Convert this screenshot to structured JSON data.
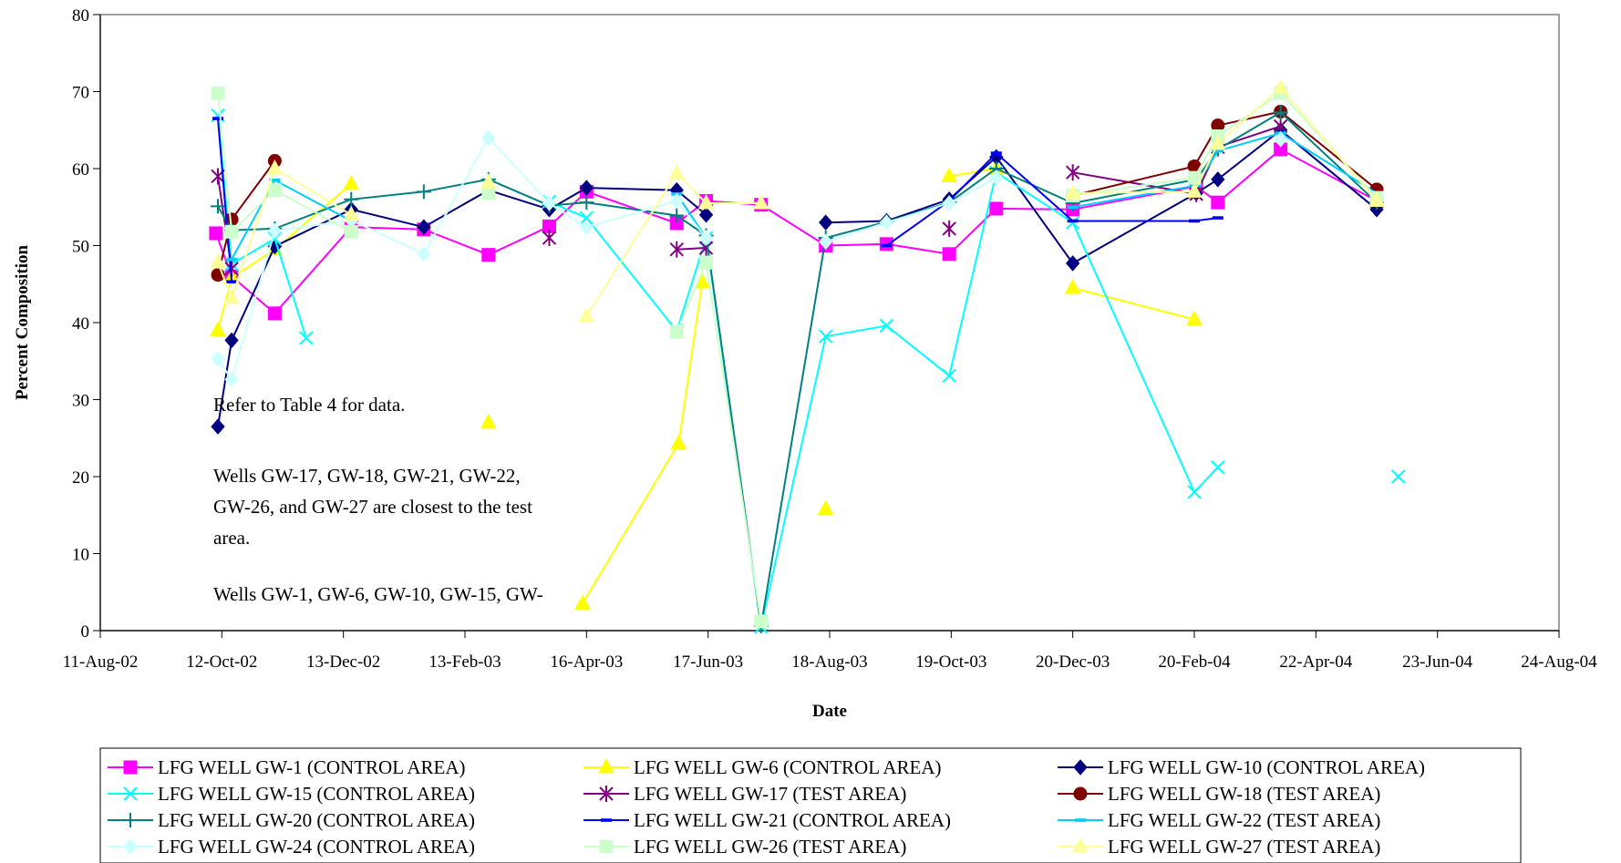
{
  "chart_data": {
    "type": "line",
    "xlabel": "Date",
    "ylabel": "Percent  Composition",
    "ylim": [
      0,
      80
    ],
    "yticks": [
      0,
      10,
      20,
      30,
      40,
      50,
      60,
      70,
      80
    ],
    "xlim": [
      "2002-08-11",
      "2004-08-24"
    ],
    "xticks": [
      "2002-08-11",
      "2002-10-12",
      "2002-12-13",
      "2003-02-13",
      "2003-04-16",
      "2003-06-17",
      "2003-08-18",
      "2003-10-19",
      "2003-12-20",
      "2004-02-20",
      "2004-04-22",
      "2004-06-23",
      "2004-08-24"
    ],
    "xtick_labels": [
      "11-Aug-02",
      "12-Oct-02",
      "13-Dec-02",
      "13-Feb-03",
      "16-Apr-03",
      "17-Jun-03",
      "18-Aug-03",
      "19-Oct-03",
      "20-Dec-03",
      "20-Feb-04",
      "22-Apr-04",
      "23-Jun-04",
      "24-Aug-04"
    ],
    "grid": false,
    "legend_position": "bottom",
    "annotations": [
      "Refer to Table 4 for data.",
      "Wells GW-17, GW-18, GW-21, GW-22,",
      "GW-26, and GW-27 are closest to the test",
      "area.",
      "Wells GW-1, GW-6, GW-10, GW-15, GW-"
    ],
    "series": [
      {
        "name": "LFG WELL GW-1 (CONTROL AREA)",
        "color": "#ff00ff",
        "marker": "square",
        "points": [
          [
            "2002-10-09",
            51.6
          ],
          [
            "2002-10-17",
            46
          ],
          [
            "2002-11-08",
            41.2
          ],
          [
            "2002-12-17",
            52.4
          ],
          [
            "2003-01-23",
            52.1
          ],
          [
            "2003-02-25",
            48.8
          ],
          [
            "2003-03-28",
            52.5
          ],
          [
            "2003-04-16",
            57
          ],
          [
            "2003-06-01",
            52.9
          ],
          [
            "2003-06-16",
            55.8
          ],
          [
            "2003-07-14",
            55.3
          ],
          [
            "2003-08-16",
            50
          ],
          [
            "2003-09-16",
            50.2
          ],
          [
            "2003-10-18",
            48.9
          ],
          [
            "2003-11-11",
            54.8
          ],
          [
            "2003-12-20",
            54.7
          ],
          [
            "2004-02-21",
            57.7
          ],
          [
            "2004-03-03",
            55.6
          ],
          [
            "2004-04-04",
            62.5
          ],
          [
            "2004-05-23",
            55.8
          ]
        ]
      },
      {
        "name": "LFG WELL GW-6 (CONTROL AREA)",
        "color": "#ffff00",
        "marker": "triangle",
        "points": [
          [
            "2002-10-10",
            39
          ],
          [
            "2002-10-17",
            45.8
          ],
          [
            "2002-11-08",
            49.5
          ],
          [
            "2002-12-17",
            58
          ],
          null,
          [
            "2003-04-14",
            3.5
          ],
          [
            "2003-06-02",
            24.3
          ],
          [
            "2003-06-14",
            45.2
          ],
          null,
          [
            "2003-08-16",
            15.8
          ],
          null,
          [
            "2003-10-18",
            59
          ],
          [
            "2003-11-11",
            60
          ],
          null,
          [
            "2003-12-20",
            44.5
          ],
          [
            "2004-02-20",
            40.4
          ]
        ],
        "isolated": [
          [
            "2003-02-25",
            27
          ]
        ]
      },
      {
        "name": "LFG WELL GW-10 (CONTROL AREA)",
        "color": "#000080",
        "marker": "diamond",
        "points": [
          [
            "2002-10-10",
            26.5
          ],
          [
            "2002-10-17",
            37.7
          ],
          [
            "2002-11-08",
            49.9
          ],
          [
            "2002-12-17",
            54.7
          ],
          [
            "2003-01-23",
            52.4
          ],
          [
            "2003-02-25",
            57.2
          ],
          [
            "2003-03-28",
            54.7
          ],
          [
            "2003-04-16",
            57.5
          ],
          [
            "2003-06-01",
            57.2
          ],
          [
            "2003-06-16",
            54
          ],
          null,
          [
            "2003-08-16",
            53
          ],
          [
            "2003-09-16",
            53.2
          ],
          [
            "2003-10-18",
            56
          ],
          [
            "2003-11-11",
            61.5
          ],
          [
            "2003-12-20",
            47.7
          ],
          [
            "2004-02-21",
            56.8
          ],
          [
            "2004-03-03",
            58.6
          ],
          [
            "2004-04-04",
            65
          ],
          [
            "2004-05-23",
            54.7
          ]
        ]
      },
      {
        "name": "LFG WELL GW-15 (CONTROL AREA)",
        "color": "#00ffff",
        "marker": "x",
        "points": [
          [
            "2002-10-10",
            66.9
          ],
          [
            "2002-10-17",
            47.6
          ],
          [
            "2002-11-08",
            50.9
          ],
          [
            "2002-11-24",
            38
          ],
          null,
          [
            "2003-03-28",
            55.7
          ],
          [
            "2003-04-16",
            53.6
          ],
          [
            "2003-06-01",
            38.9
          ],
          [
            "2003-06-16",
            51
          ],
          [
            "2003-07-14",
            0.5
          ],
          [
            "2003-08-16",
            38.2
          ],
          [
            "2003-09-16",
            39.6
          ],
          [
            "2003-10-18",
            33.1
          ],
          [
            "2003-11-11",
            59.5
          ],
          [
            "2003-12-20",
            53
          ],
          [
            "2004-02-20",
            18
          ],
          [
            "2004-03-03",
            21.2
          ]
        ],
        "isolated": [
          [
            "2004-06-03",
            20
          ]
        ]
      },
      {
        "name": "LFG WELL GW-17 (TEST AREA)",
        "color": "#800080",
        "marker": "star",
        "points": [
          [
            "2002-10-10",
            59
          ],
          [
            "2002-10-17",
            47
          ],
          null,
          [
            "2003-06-01",
            49.5
          ],
          [
            "2003-06-16",
            49.7
          ],
          null,
          [
            "2003-12-20",
            59.5
          ],
          [
            "2004-02-21",
            56.7
          ],
          [
            "2004-03-03",
            62.8
          ],
          [
            "2004-04-04",
            65.5
          ]
        ],
        "isolated": [
          [
            "2003-03-28",
            51
          ],
          [
            "2003-10-18",
            52.2
          ]
        ]
      },
      {
        "name": "LFG WELL GW-18 (TEST AREA)",
        "color": "#800000",
        "marker": "circle",
        "points": [
          [
            "2002-10-10",
            46.2
          ],
          [
            "2002-10-17",
            53.4
          ],
          [
            "2002-11-08",
            61
          ],
          null,
          [
            "2003-12-20",
            56.5
          ],
          [
            "2004-02-20",
            60.3
          ],
          [
            "2004-03-03",
            65.6
          ],
          [
            "2004-04-04",
            67.4
          ],
          [
            "2004-05-23",
            57.3
          ]
        ]
      },
      {
        "name": "LFG WELL GW-20 (CONTROL AREA)",
        "color": "#008080",
        "marker": "plus",
        "points": [
          [
            "2002-10-10",
            55.1
          ],
          [
            "2002-10-17",
            52
          ],
          [
            "2002-11-08",
            52.2
          ],
          [
            "2002-12-17",
            56
          ],
          [
            "2003-01-23",
            57
          ],
          [
            "2003-02-25",
            58.6
          ],
          [
            "2003-03-28",
            55.2
          ],
          [
            "2003-04-16",
            55.6
          ],
          [
            "2003-06-01",
            53.9
          ],
          [
            "2003-06-16",
            51.3
          ],
          [
            "2003-07-14",
            0.6
          ],
          [
            "2003-08-16",
            51
          ],
          [
            "2003-09-16",
            53.1
          ],
          [
            "2003-10-18",
            55.6
          ],
          [
            "2003-11-11",
            60
          ],
          [
            "2003-12-20",
            55.5
          ],
          [
            "2004-02-21",
            58.6
          ],
          [
            "2004-03-03",
            62.5
          ],
          [
            "2004-04-04",
            67.3
          ],
          [
            "2004-05-23",
            55.6
          ]
        ]
      },
      {
        "name": "LFG WELL GW-21 (CONTROL AREA)",
        "color": "#0000ff",
        "marker": "dash",
        "points": [
          [
            "2002-10-10",
            66.5
          ],
          [
            "2002-10-17",
            45.3
          ],
          null,
          [
            "2003-09-16",
            50
          ],
          [
            "2003-10-18",
            55.8
          ],
          [
            "2003-11-11",
            62
          ],
          [
            "2003-12-20",
            53.2
          ],
          [
            "2004-02-20",
            53.2
          ],
          [
            "2004-03-03",
            53.6
          ]
        ]
      },
      {
        "name": "LFG WELL GW-22 (TEST AREA)",
        "color": "#00ccff",
        "marker": "dash",
        "points": [
          [
            "2002-10-17",
            48.2
          ],
          [
            "2002-11-08",
            58.5
          ],
          [
            "2002-12-17",
            53.2
          ],
          null,
          [
            "2003-06-01",
            56.7
          ],
          [
            "2003-06-16",
            51
          ],
          null,
          [
            "2003-12-20",
            55
          ],
          [
            "2004-02-21",
            57.8
          ],
          [
            "2004-03-03",
            62.3
          ],
          [
            "2004-04-04",
            64.6
          ],
          [
            "2004-05-23",
            56.8
          ]
        ]
      },
      {
        "name": "LFG WELL GW-24 (CONTROL AREA)",
        "color": "#ccffff",
        "marker": "diamond",
        "points": [
          [
            "2002-10-10",
            35.3
          ],
          [
            "2002-10-17",
            32.6
          ],
          [
            "2002-11-08",
            51.9
          ],
          [
            "2002-12-17",
            53.3
          ],
          [
            "2003-01-23",
            48.9
          ],
          [
            "2003-02-25",
            64
          ],
          [
            "2003-03-28",
            55.5
          ],
          [
            "2003-04-16",
            52.4
          ],
          [
            "2003-06-01",
            55.8
          ],
          [
            "2003-06-16",
            51
          ],
          null,
          [
            "2003-08-16",
            50.5
          ],
          [
            "2003-09-16",
            53
          ],
          [
            "2003-10-18",
            55.5
          ],
          [
            "2003-11-11",
            58.8
          ],
          null,
          [
            "2004-04-04",
            63.8
          ]
        ]
      },
      {
        "name": "LFG WELL GW-26 (TEST AREA)",
        "color": "#ccffcc",
        "marker": "square",
        "points": [
          [
            "2002-10-10",
            69.8
          ],
          [
            "2002-10-17",
            51.8
          ],
          [
            "2002-11-08",
            57.2
          ],
          [
            "2002-12-17",
            51.8
          ],
          null,
          [
            "2003-02-25",
            56.8
          ],
          null,
          [
            "2003-06-01",
            38.8
          ],
          [
            "2003-06-16",
            47.8
          ],
          [
            "2003-07-14",
            1.2
          ],
          null,
          [
            "2003-12-20",
            56.5
          ],
          [
            "2004-02-20",
            58.8
          ],
          [
            "2004-03-03",
            64.2
          ],
          [
            "2004-04-04",
            69.8
          ],
          [
            "2004-05-23",
            56.2
          ]
        ]
      },
      {
        "name": "LFG WELL GW-27 (TEST AREA)",
        "color": "#ffff99",
        "marker": "triangle",
        "points": [
          [
            "2002-10-10",
            47.8
          ],
          [
            "2002-10-17",
            43.2
          ],
          [
            "2002-11-08",
            60
          ],
          [
            "2002-12-17",
            54
          ],
          null,
          [
            "2003-02-25",
            58.2
          ],
          null,
          [
            "2003-04-16",
            40.8
          ],
          [
            "2003-06-01",
            59.4
          ],
          [
            "2003-06-16",
            55.5
          ],
          [
            "2003-07-14",
            55.5
          ],
          null,
          [
            "2003-12-20",
            56.8
          ],
          [
            "2004-02-20",
            57
          ],
          [
            "2004-03-03",
            63.2
          ],
          [
            "2004-04-04",
            70.5
          ],
          [
            "2004-05-23",
            55.8
          ]
        ]
      }
    ]
  }
}
